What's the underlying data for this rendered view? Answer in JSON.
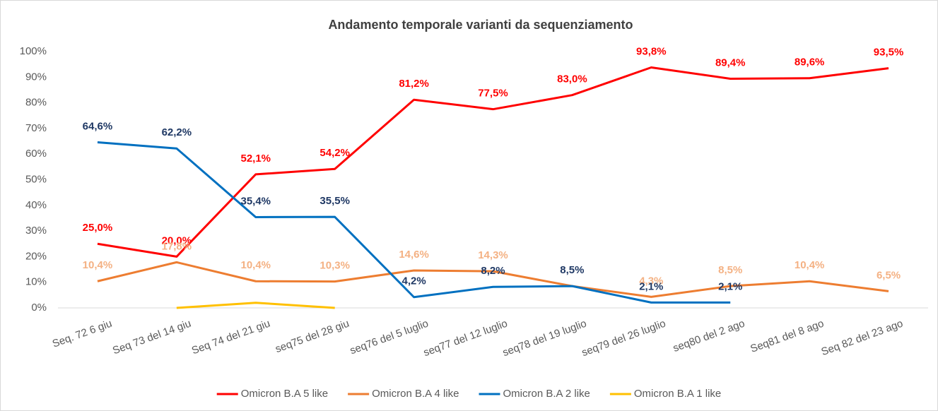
{
  "chart_data": {
    "type": "line",
    "title": "Andamento temporale varianti da sequenziamento",
    "categories": [
      "Seq. 72 6 giu",
      "Seq 73 del 14 giu",
      "Seq 74 del 21 giu",
      "seq75 del 28 giu",
      "seq76 del 5 luglio",
      "seq77 del 12 luglio",
      "seq78 del 19 luglio",
      "seq79 del 26 luglio",
      "seq80 del 2 ago",
      "Seq81 del 8 ago",
      "Seq 82 del 23 ago"
    ],
    "series": [
      {
        "name": "Omicron B.A 5 like",
        "color": "#ff0000",
        "label_color": "#ff0000",
        "values": [
          25.0,
          20.0,
          52.1,
          54.2,
          81.2,
          77.5,
          83.0,
          93.8,
          89.4,
          89.6,
          93.5
        ],
        "value_labels": [
          "25,0%",
          "20,0%",
          "52,1%",
          "54,2%",
          "81,2%",
          "77,5%",
          "83,0%",
          "93,8%",
          "89,4%",
          "89,6%",
          "93,5%"
        ]
      },
      {
        "name": "Omicron B.A 4 like",
        "color": "#ed7d31",
        "label_color": "#f4b183",
        "values": [
          10.4,
          17.8,
          10.4,
          10.3,
          14.6,
          14.3,
          8.5,
          4.3,
          8.5,
          10.4,
          6.5
        ],
        "value_labels": [
          "10,4%",
          "17,8%",
          "10,4%",
          "10,3%",
          "14,6%",
          "14,3%",
          null,
          "4,3%",
          "8,5%",
          "10,4%",
          "6,5%"
        ]
      },
      {
        "name": "Omicron B.A 2 like",
        "color": "#0070c0",
        "label_color": "#1f3864",
        "values": [
          64.6,
          62.2,
          35.4,
          35.5,
          4.2,
          8.2,
          8.5,
          2.1,
          2.1,
          null,
          null
        ],
        "value_labels": [
          "64,6%",
          "62,2%",
          "35,4%",
          "35,5%",
          "4,2%",
          "8,2%",
          "8,5%",
          "2,1%",
          "2,1%",
          null,
          null
        ]
      },
      {
        "name": "Omicron B.A 1 like",
        "color": "#ffc000",
        "values": [
          null,
          0,
          2,
          0,
          null,
          null,
          null,
          null,
          null,
          null,
          null
        ]
      }
    ],
    "ylim": [
      0,
      100
    ],
    "yticks": [
      {
        "value": 0,
        "label": "0%"
      },
      {
        "value": 10,
        "label": "10%"
      },
      {
        "value": 20,
        "label": "20%"
      },
      {
        "value": 30,
        "label": "30%"
      },
      {
        "value": 40,
        "label": "40%"
      },
      {
        "value": 50,
        "label": "50%"
      },
      {
        "value": 60,
        "label": "60%"
      },
      {
        "value": 70,
        "label": "70%"
      },
      {
        "value": 80,
        "label": "80%"
      },
      {
        "value": 90,
        "label": "90%"
      },
      {
        "value": 100,
        "label": "100%"
      }
    ],
    "grid": false,
    "legend": "bottom"
  }
}
